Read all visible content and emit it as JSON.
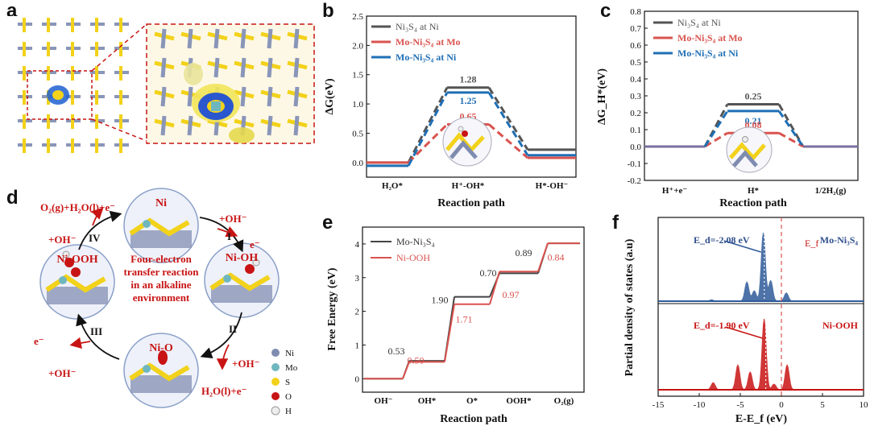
{
  "labels": {
    "a": "a",
    "b": "b",
    "c": "c",
    "d": "d",
    "e": "e",
    "f": "f"
  },
  "colors": {
    "dark": "#555555",
    "red": "#d9534f",
    "blue": "#1f6fb5",
    "ni": "#7f8cb0",
    "s": "#f2d21a",
    "mo": "#6fb7bf",
    "o": "#c81414",
    "h": "#e8e8e8"
  },
  "chart_data": [
    {
      "panel": "b",
      "type": "line",
      "xlabel": "Reaction path",
      "ylabel": "ΔG(eV)",
      "categories": [
        "H₂O*",
        "H⁺-OH*",
        "H*-OH⁻"
      ],
      "ylim": [
        -0.25,
        2.5
      ],
      "yticks": [
        "-0.5",
        "0.0",
        "0.5",
        "1.0",
        "1.5",
        "2.0",
        "2.5"
      ],
      "legend": [
        "Ni₃S₄ at Ni",
        "Mo-Ni₃S₄ at Mo",
        "Mo-Ni₃S₄ at Ni"
      ],
      "series": [
        {
          "name": "Ni₃S₄ at Ni",
          "values": [
            0,
            1.28,
            0.22
          ]
        },
        {
          "name": "Mo-Ni₃S₄ at Mo",
          "values": [
            0,
            0.65,
            0.08
          ]
        },
        {
          "name": "Mo-Ni₃S₄ at Ni",
          "values": [
            0,
            1.25,
            0.18
          ]
        }
      ],
      "data_labels": [
        "1.28",
        "1.25",
        "0.65"
      ]
    },
    {
      "panel": "c",
      "type": "line",
      "xlabel": "Reaction path",
      "ylabel": "ΔG_H*(eV)",
      "categories": [
        "H⁺+e⁻",
        "H*",
        "1/2H₂(g)"
      ],
      "ylim": [
        -0.2,
        0.8
      ],
      "yticks": [
        "-0.2",
        "-0.1",
        "0.0",
        "0.1",
        "0.2",
        "0.3",
        "0.4",
        "0.5",
        "0.6",
        "0.7",
        "0.8"
      ],
      "legend": [
        "Ni₃S₄ at Ni",
        "Mo-Ni₃S₄ at Mo",
        "Mo-Ni₃S₄ at Ni"
      ],
      "series": [
        {
          "name": "Ni₃S₄ at Ni",
          "values": [
            0,
            0.25,
            0
          ]
        },
        {
          "name": "Mo-Ni₃S₄ at Mo",
          "values": [
            0,
            0.08,
            0
          ]
        },
        {
          "name": "Mo-Ni₃S₄ at Ni",
          "values": [
            0,
            0.21,
            0
          ]
        }
      ],
      "data_labels": [
        "0.25",
        "0.21",
        "0.08"
      ]
    },
    {
      "panel": "e",
      "type": "line",
      "xlabel": "Reaction path",
      "ylabel": "Free Energy (eV)",
      "categories": [
        "OH⁻",
        "OH*",
        "O*",
        "OOH*",
        "O₂(g)"
      ],
      "ylim": [
        -0.4,
        4.5
      ],
      "yticks": [
        "0",
        "1",
        "2",
        "3",
        "4"
      ],
      "legend": [
        "Mo-Ni₃S₄",
        "Ni-OOH"
      ],
      "series": [
        {
          "name": "Mo-Ni₃S₄",
          "values": [
            0,
            0.53,
            2.43,
            3.13,
            4.02
          ]
        },
        {
          "name": "Ni-OOH",
          "values": [
            0,
            0.5,
            2.21,
            3.18,
            4.02
          ]
        }
      ],
      "data_labels_dark": [
        "0.53",
        "1.90",
        "0.70",
        "0.89"
      ],
      "data_labels_red": [
        "0.50",
        "1.71",
        "0.97",
        "0.84"
      ]
    },
    {
      "panel": "f",
      "type": "area",
      "xlabel": "E-E_f (eV)",
      "ylabel": "Partial density of states (a.u)",
      "xlim": [
        -15,
        10
      ],
      "xticks": [
        "-15",
        "-10",
        "-5",
        "0",
        "5",
        "10"
      ],
      "series": [
        {
          "name": "Mo-Ni₃S₄",
          "d_band_center_label": "E_d=-2.08 eV",
          "d_band_center": -2.08,
          "peaks": [
            [
              -8.5,
              0.02
            ],
            [
              -4.2,
              0.28
            ],
            [
              -3.3,
              0.15
            ],
            [
              -2.2,
              1.0
            ],
            [
              -1.3,
              0.3
            ],
            [
              0.6,
              0.12
            ]
          ]
        },
        {
          "name": "Ni-OOH",
          "d_band_center_label": "E_d=-1.90 eV",
          "d_band_center": -1.9,
          "peaks": [
            [
              -8.3,
              0.1
            ],
            [
              -5.3,
              0.35
            ],
            [
              -3.8,
              0.25
            ],
            [
              -2.1,
              1.0
            ],
            [
              -0.9,
              0.08
            ],
            [
              0.7,
              0.35
            ]
          ]
        }
      ],
      "fermi_label": "E_f"
    }
  ],
  "panel_d": {
    "center_text": [
      "Four-electron",
      "transfer reaction",
      "in an alkaline",
      "environment"
    ],
    "states": [
      "Ni",
      "Ni-OH",
      "Ni-O",
      "Ni-OOH"
    ],
    "steps": [
      "I",
      "II",
      "III",
      "IV"
    ],
    "labels": {
      "top_left_out": "O₂(g)+H₂O(l)+e⁻",
      "left_in": "+OH⁻",
      "right_top_in": "+OH⁻",
      "right_top_out": "e⁻",
      "right_bottom_in": "+OH⁻",
      "right_bottom_out": "H₂O(l)+e⁻",
      "left_bottom_out": "e⁻",
      "left_bottom_in": "+OH⁻"
    },
    "legend": [
      "Ni",
      "Mo",
      "S",
      "O",
      "H"
    ]
  }
}
